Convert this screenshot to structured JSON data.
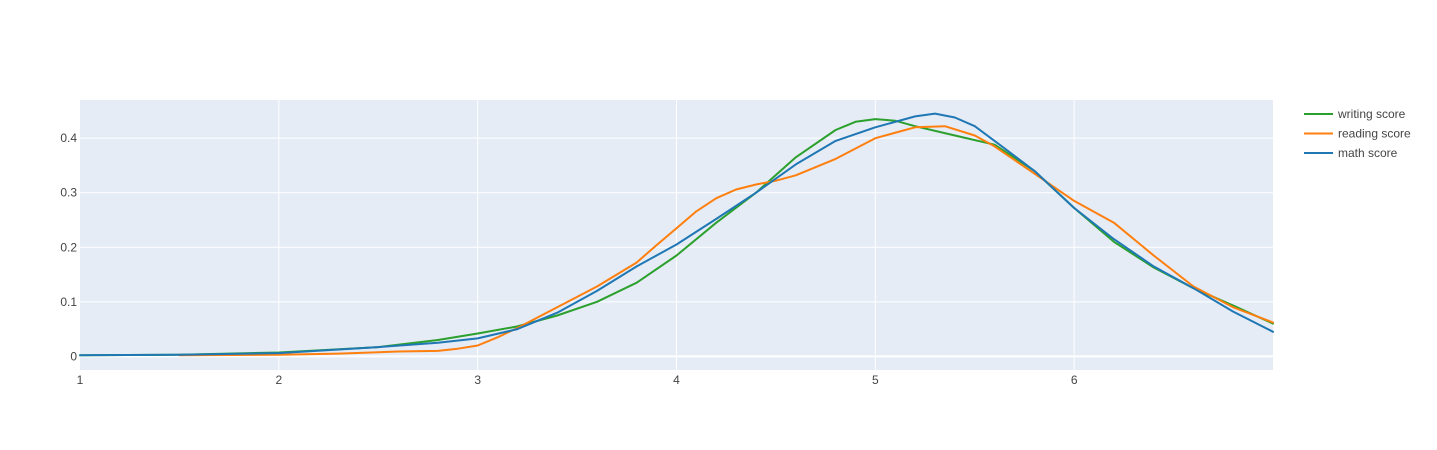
{
  "chart_data": {
    "type": "line",
    "title": "",
    "xlabel": "",
    "ylabel": "",
    "xlim": [
      1,
      7
    ],
    "ylim": [
      -0.025,
      0.47
    ],
    "x_ticks": [
      1,
      2,
      3,
      4,
      5,
      6
    ],
    "x_tick_labels": [
      "1",
      "2",
      "3",
      "4",
      "5",
      "6"
    ],
    "y_ticks": [
      0,
      0.1,
      0.2,
      0.3,
      0.4
    ],
    "y_tick_labels": [
      "0",
      "0.1",
      "0.2",
      "0.3",
      "0.4"
    ],
    "grid": true,
    "legend_position": "top-right",
    "plot_background": "#e5ecf6",
    "series": [
      {
        "name": "writing score",
        "color": "#2ca02c",
        "points": [
          [
            1.0,
            0.002
          ],
          [
            1.5,
            0.003
          ],
          [
            2.0,
            0.007
          ],
          [
            2.5,
            0.017
          ],
          [
            2.8,
            0.03
          ],
          [
            3.0,
            0.042
          ],
          [
            3.2,
            0.055
          ],
          [
            3.4,
            0.075
          ],
          [
            3.6,
            0.1
          ],
          [
            3.8,
            0.135
          ],
          [
            4.0,
            0.185
          ],
          [
            4.2,
            0.245
          ],
          [
            4.4,
            0.3
          ],
          [
            4.6,
            0.365
          ],
          [
            4.8,
            0.415
          ],
          [
            4.9,
            0.43
          ],
          [
            5.0,
            0.435
          ],
          [
            5.1,
            0.432
          ],
          [
            5.2,
            0.422
          ],
          [
            5.4,
            0.405
          ],
          [
            5.6,
            0.388
          ],
          [
            5.8,
            0.34
          ],
          [
            6.0,
            0.272
          ],
          [
            6.2,
            0.21
          ],
          [
            6.4,
            0.163
          ],
          [
            6.6,
            0.125
          ],
          [
            6.8,
            0.093
          ],
          [
            7.0,
            0.06
          ]
        ]
      },
      {
        "name": "reading score",
        "color": "#ff7f0e",
        "points": [
          [
            1.5,
            0.002
          ],
          [
            2.0,
            0.003
          ],
          [
            2.3,
            0.005
          ],
          [
            2.6,
            0.009
          ],
          [
            2.8,
            0.01
          ],
          [
            2.9,
            0.014
          ],
          [
            3.0,
            0.02
          ],
          [
            3.1,
            0.035
          ],
          [
            3.2,
            0.052
          ],
          [
            3.4,
            0.09
          ],
          [
            3.6,
            0.128
          ],
          [
            3.8,
            0.172
          ],
          [
            3.9,
            0.204
          ],
          [
            4.0,
            0.235
          ],
          [
            4.1,
            0.266
          ],
          [
            4.2,
            0.29
          ],
          [
            4.3,
            0.306
          ],
          [
            4.4,
            0.315
          ],
          [
            4.5,
            0.322
          ],
          [
            4.6,
            0.332
          ],
          [
            4.8,
            0.362
          ],
          [
            5.0,
            0.4
          ],
          [
            5.2,
            0.42
          ],
          [
            5.35,
            0.422
          ],
          [
            5.5,
            0.405
          ],
          [
            5.6,
            0.385
          ],
          [
            5.8,
            0.335
          ],
          [
            6.0,
            0.285
          ],
          [
            6.2,
            0.245
          ],
          [
            6.4,
            0.185
          ],
          [
            6.6,
            0.128
          ],
          [
            6.8,
            0.09
          ],
          [
            7.0,
            0.062
          ]
        ]
      },
      {
        "name": "math score",
        "color": "#1f77b4",
        "points": [
          [
            1.0,
            0.002
          ],
          [
            1.5,
            0.003
          ],
          [
            2.0,
            0.006
          ],
          [
            2.5,
            0.017
          ],
          [
            2.8,
            0.025
          ],
          [
            3.0,
            0.033
          ],
          [
            3.2,
            0.05
          ],
          [
            3.4,
            0.08
          ],
          [
            3.6,
            0.12
          ],
          [
            3.8,
            0.165
          ],
          [
            4.0,
            0.205
          ],
          [
            4.2,
            0.252
          ],
          [
            4.4,
            0.3
          ],
          [
            4.6,
            0.352
          ],
          [
            4.8,
            0.395
          ],
          [
            5.0,
            0.42
          ],
          [
            5.2,
            0.44
          ],
          [
            5.3,
            0.445
          ],
          [
            5.4,
            0.438
          ],
          [
            5.5,
            0.422
          ],
          [
            5.6,
            0.395
          ],
          [
            5.8,
            0.34
          ],
          [
            6.0,
            0.272
          ],
          [
            6.2,
            0.215
          ],
          [
            6.4,
            0.165
          ],
          [
            6.6,
            0.125
          ],
          [
            6.8,
            0.082
          ],
          [
            7.0,
            0.045
          ]
        ]
      }
    ]
  }
}
